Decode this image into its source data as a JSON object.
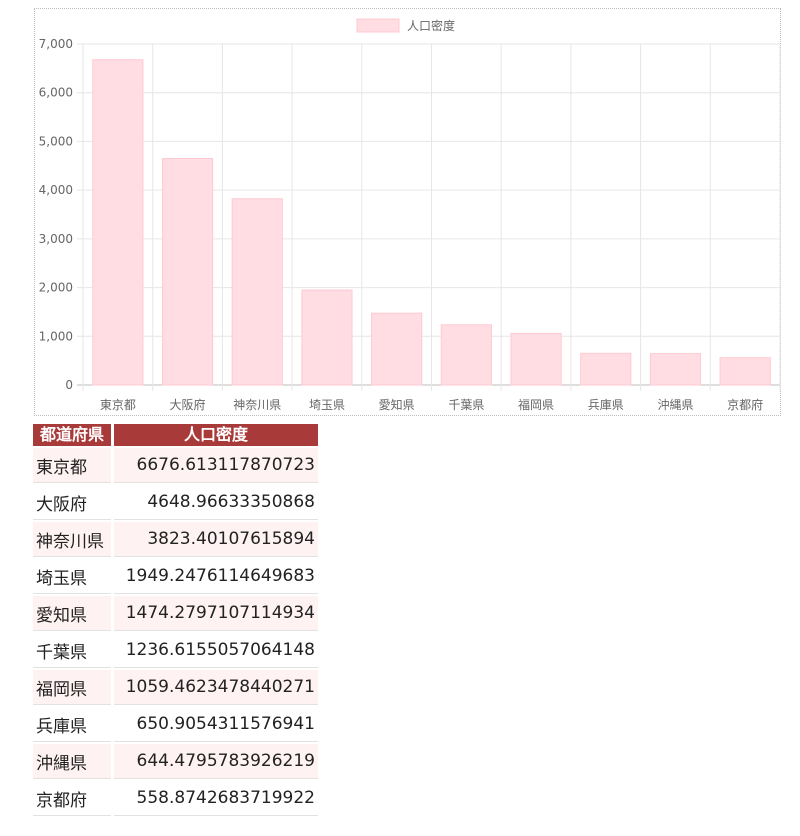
{
  "chart_data": {
    "type": "bar",
    "categories": [
      "東京都",
      "大阪府",
      "神奈川県",
      "埼玉県",
      "愛知県",
      "千葉県",
      "福岡県",
      "兵庫県",
      "沖縄県",
      "京都府"
    ],
    "series": [
      {
        "name": "人口密度",
        "values": [
          6676.613117870723,
          4648.96633350868,
          3823.40107615894,
          1949.2476114649683,
          1474.2797107114934,
          1236.6155057064148,
          1059.4623478440271,
          650.9054311576941,
          644.4795783926219,
          558.8742683719922
        ]
      }
    ],
    "yticks": [
      "0",
      "1,000",
      "2,000",
      "3,000",
      "4,000",
      "5,000",
      "6,000",
      "7,000"
    ],
    "ylim": [
      0,
      7000
    ],
    "grid": true,
    "legend_position": "top-center",
    "bar_color": "#ffdde3",
    "bar_border_color": "#ffc9d2"
  },
  "table": {
    "headers": [
      "都道府県",
      "人口密度"
    ],
    "header_color": "#a83a3a",
    "rows": [
      {
        "pref": "東京都",
        "density": "6676.613117870723"
      },
      {
        "pref": "大阪府",
        "density": "4648.96633350868"
      },
      {
        "pref": "神奈川県",
        "density": "3823.40107615894"
      },
      {
        "pref": "埼玉県",
        "density": "1949.2476114649683"
      },
      {
        "pref": "愛知県",
        "density": "1474.2797107114934"
      },
      {
        "pref": "千葉県",
        "density": "1236.6155057064148"
      },
      {
        "pref": "福岡県",
        "density": "1059.4623478440271"
      },
      {
        "pref": "兵庫県",
        "density": "650.9054311576941"
      },
      {
        "pref": "沖縄県",
        "density": "644.4795783926219"
      },
      {
        "pref": "京都府",
        "density": "558.8742683719922"
      }
    ]
  }
}
